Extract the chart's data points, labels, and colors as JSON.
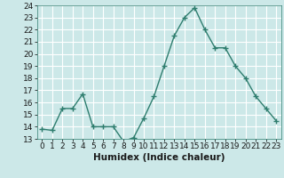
{
  "x": [
    0,
    1,
    2,
    3,
    4,
    5,
    6,
    7,
    8,
    9,
    10,
    11,
    12,
    13,
    14,
    15,
    16,
    17,
    18,
    19,
    20,
    21,
    22,
    23
  ],
  "y": [
    13.8,
    13.7,
    15.5,
    15.5,
    16.7,
    14.0,
    14.0,
    14.0,
    12.8,
    13.1,
    14.7,
    16.5,
    19.0,
    21.5,
    23.0,
    23.8,
    22.0,
    20.5,
    20.5,
    19.0,
    18.0,
    16.5,
    15.5,
    14.5
  ],
  "line_color": "#2e7d6e",
  "bg_color": "#cce8e8",
  "grid_color": "#ffffff",
  "xlabel": "Humidex (Indice chaleur)",
  "ylim": [
    13,
    24
  ],
  "xlim": [
    -0.5,
    23.5
  ],
  "yticks": [
    13,
    14,
    15,
    16,
    17,
    18,
    19,
    20,
    21,
    22,
    23,
    24
  ],
  "xticks": [
    0,
    1,
    2,
    3,
    4,
    5,
    6,
    7,
    8,
    9,
    10,
    11,
    12,
    13,
    14,
    15,
    16,
    17,
    18,
    19,
    20,
    21,
    22,
    23
  ],
  "xtick_labels": [
    "0",
    "1",
    "2",
    "3",
    "4",
    "5",
    "6",
    "7",
    "8",
    "9",
    "10",
    "11",
    "12",
    "13",
    "14",
    "15",
    "16",
    "17",
    "18",
    "19",
    "20",
    "21",
    "22",
    "23"
  ],
  "marker": "+",
  "linewidth": 1.0,
  "markersize": 4,
  "tick_fontsize": 6.5,
  "xlabel_fontsize": 7.5
}
